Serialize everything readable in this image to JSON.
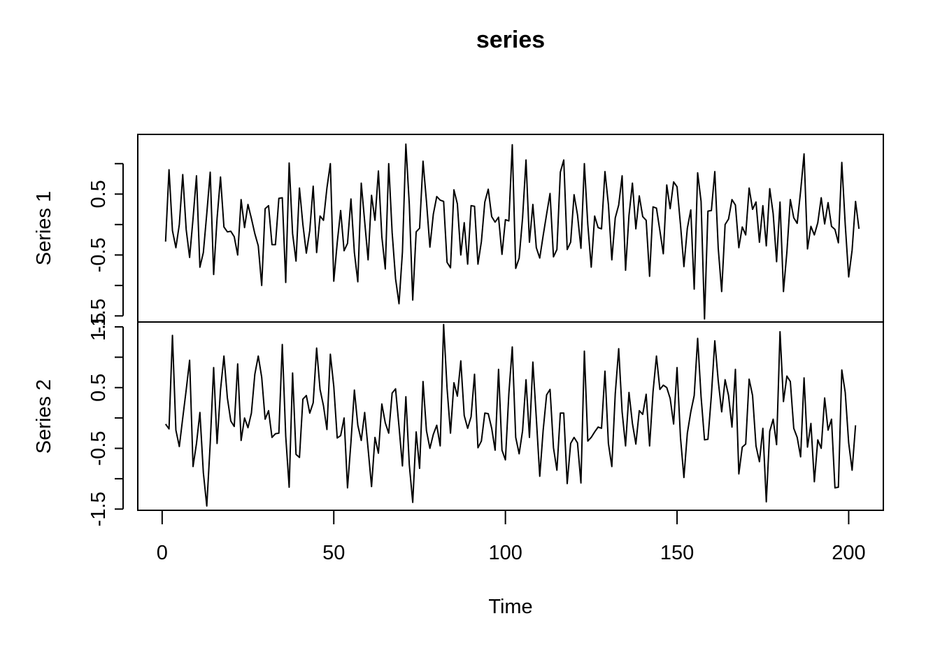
{
  "chart_data": {
    "type": "line",
    "title": "series",
    "xlabel": "Time",
    "xlim": [
      -7.1,
      210.1
    ],
    "x_ticks": [
      0,
      50,
      100,
      150,
      200
    ],
    "x_tick_labels": [
      "0",
      "50",
      "100",
      "150",
      "200"
    ],
    "x_start": 1,
    "panels": [
      {
        "name": "Series 1",
        "ylim": [
          -1.6,
          1.48
        ],
        "y_ticks": [
          -1.5,
          -1.0,
          -0.5,
          0.0,
          0.5,
          1.0
        ],
        "y_tick_labels": [
          "-1.5",
          "",
          "-0.5",
          "",
          "0.5",
          ""
        ],
        "values": [
          -0.28,
          0.9,
          -0.1,
          -0.38,
          0.0,
          0.82,
          -0.08,
          -0.54,
          0.1,
          0.8,
          -0.7,
          -0.46,
          0.18,
          0.86,
          -0.82,
          0.1,
          0.78,
          -0.04,
          -0.12,
          -0.11,
          -0.2,
          -0.5,
          0.41,
          -0.05,
          0.33,
          0.1,
          -0.15,
          -0.35,
          -1.0,
          0.26,
          0.31,
          -0.33,
          -0.33,
          0.43,
          0.44,
          -0.95,
          1.01,
          -0.15,
          -0.6,
          0.6,
          0.0,
          -0.47,
          -0.1,
          0.63,
          -0.46,
          0.14,
          0.07,
          0.6,
          1.0,
          -0.93,
          -0.3,
          0.23,
          -0.43,
          -0.31,
          0.42,
          -0.46,
          -0.94,
          0.68,
          0.05,
          -0.58,
          0.48,
          0.07,
          0.88,
          -0.2,
          -0.73,
          1.0,
          -0.13,
          -0.89,
          -1.3,
          -0.45,
          1.32,
          0.33,
          -1.24,
          -0.12,
          -0.06,
          1.04,
          0.38,
          -0.37,
          0.17,
          0.46,
          0.4,
          0.38,
          -0.62,
          -0.71,
          0.57,
          0.34,
          -0.5,
          0.03,
          -0.65,
          0.31,
          0.3,
          -0.65,
          -0.28,
          0.37,
          0.58,
          0.13,
          0.04,
          0.12,
          -0.49,
          0.08,
          0.06,
          1.31,
          -0.72,
          -0.55,
          0.11,
          1.06,
          -0.29,
          0.33,
          -0.38,
          -0.55,
          -0.18,
          0.17,
          0.51,
          -0.53,
          -0.41,
          0.86,
          1.06,
          -0.41,
          -0.29,
          0.49,
          0.16,
          -0.39,
          1.0,
          0.0,
          -0.7,
          0.14,
          -0.05,
          -0.07,
          0.87,
          0.33,
          -0.58,
          0.11,
          0.32,
          0.8,
          -0.75,
          0.15,
          0.68,
          -0.07,
          0.47,
          0.13,
          0.07,
          -0.85,
          0.29,
          0.27,
          -0.1,
          -0.48,
          0.65,
          0.26,
          0.7,
          0.62,
          0.0,
          -0.69,
          -0.06,
          0.24,
          -1.06,
          0.85,
          0.38,
          -1.55,
          0.22,
          0.23,
          0.87,
          -0.39,
          -1.1,
          0.0,
          0.09,
          0.41,
          0.32,
          -0.38,
          -0.04,
          -0.17,
          0.6,
          0.25,
          0.37,
          -0.29,
          0.31,
          -0.35,
          0.59,
          0.18,
          -0.61,
          0.37,
          -1.1,
          -0.45,
          0.41,
          0.11,
          0.02,
          0.55,
          1.16,
          -0.4,
          -0.03,
          -0.17,
          0.03,
          0.44,
          0.01,
          0.36,
          -0.03,
          -0.08,
          -0.3,
          1.02,
          0.0,
          -0.86,
          -0.42,
          0.38,
          -0.07
        ]
      },
      {
        "name": "Series 2",
        "ylim": [
          -1.52,
          1.58
        ],
        "y_ticks": [
          -1.5,
          -1.0,
          -0.5,
          0.0,
          0.5,
          1.0,
          1.5
        ],
        "y_tick_labels": [
          "-1.5",
          "",
          "-0.5",
          "",
          "0.5",
          "",
          "1.5"
        ],
        "values": [
          -0.1,
          -0.18,
          1.36,
          -0.2,
          -0.47,
          0.0,
          0.46,
          0.95,
          -0.8,
          -0.42,
          0.09,
          -0.9,
          -1.45,
          -0.42,
          0.83,
          -0.42,
          0.46,
          1.02,
          0.33,
          -0.05,
          -0.14,
          0.89,
          -0.37,
          0.0,
          -0.16,
          0.08,
          0.72,
          1.02,
          0.67,
          -0.02,
          0.12,
          -0.32,
          -0.26,
          -0.25,
          1.21,
          -0.3,
          -1.14,
          0.74,
          -0.6,
          -0.65,
          0.31,
          0.37,
          0.08,
          0.25,
          1.15,
          0.47,
          0.2,
          -0.19,
          1.05,
          0.52,
          -0.33,
          -0.29,
          0.0,
          -1.15,
          -0.4,
          0.46,
          -0.12,
          -0.37,
          0.09,
          -0.51,
          -1.13,
          -0.32,
          -0.58,
          0.23,
          -0.08,
          -0.25,
          0.41,
          0.48,
          -0.14,
          -0.79,
          0.35,
          -0.77,
          -1.39,
          -0.23,
          -0.83,
          0.6,
          -0.21,
          -0.5,
          -0.27,
          -0.12,
          -0.46,
          1.54,
          0.49,
          -0.25,
          0.58,
          0.36,
          0.94,
          0.04,
          -0.17,
          0.02,
          0.72,
          -0.49,
          -0.38,
          0.08,
          0.07,
          -0.17,
          -0.53,
          0.8,
          -0.53,
          -0.69,
          0.4,
          1.17,
          -0.32,
          -0.59,
          -0.21,
          0.63,
          -0.32,
          0.92,
          0.0,
          -0.96,
          -0.2,
          0.38,
          0.47,
          -0.49,
          -0.86,
          0.08,
          0.08,
          -1.08,
          -0.42,
          -0.32,
          -0.41,
          -1.07,
          1.1,
          -0.38,
          -0.32,
          -0.23,
          -0.15,
          -0.17,
          0.77,
          -0.42,
          -0.8,
          0.4,
          1.14,
          0.1,
          -0.46,
          0.42,
          -0.09,
          -0.43,
          0.12,
          0.06,
          0.39,
          -0.46,
          0.43,
          1.02,
          0.47,
          0.54,
          0.5,
          0.32,
          -0.1,
          0.83,
          -0.32,
          -0.98,
          -0.25,
          0.1,
          0.37,
          1.31,
          0.35,
          -0.36,
          -0.35,
          0.37,
          1.27,
          0.61,
          0.1,
          0.63,
          0.37,
          -0.15,
          0.8,
          -0.92,
          -0.48,
          -0.43,
          0.64,
          0.37,
          -0.46,
          -0.72,
          -0.17,
          -1.38,
          -0.22,
          -0.02,
          -0.44,
          1.42,
          0.27,
          0.69,
          0.6,
          -0.17,
          -0.32,
          -0.64,
          0.66,
          -0.48,
          -0.09,
          -1.05,
          -0.36,
          -0.5,
          0.33,
          -0.2,
          -0.02,
          -1.15,
          -1.14,
          0.79,
          0.42,
          -0.41,
          -0.86,
          -0.12
        ]
      }
    ],
    "grid": false,
    "legend": "none"
  }
}
